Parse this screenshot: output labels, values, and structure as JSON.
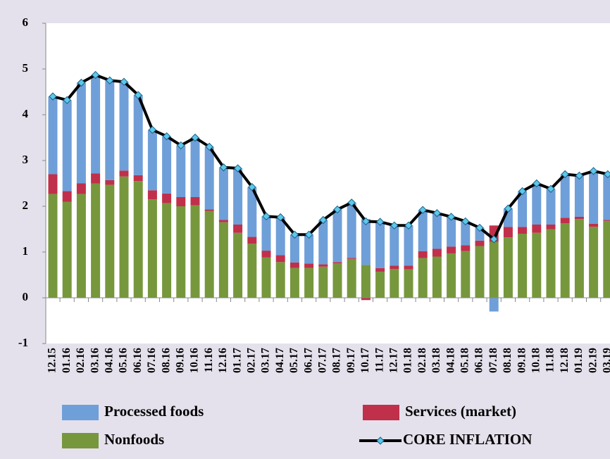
{
  "chart_data": {
    "type": "bar",
    "stacked": true,
    "categories": [
      "12.15",
      "01.16",
      "02.16",
      "03.16",
      "04.16",
      "05.16",
      "06.16",
      "07.16",
      "08.16",
      "09.16",
      "10.16",
      "11.16",
      "12.16",
      "01.17",
      "02.17",
      "03.17",
      "04.17",
      "05.17",
      "06.17",
      "07.17",
      "08.17",
      "09.17",
      "10.17",
      "11.17",
      "12.17",
      "01.18",
      "02.18",
      "03.18",
      "04.18",
      "05.18",
      "06.18",
      "07.18",
      "08.18",
      "09.18",
      "10.18",
      "11.18",
      "12.18",
      "01.19",
      "02.19",
      "03.19"
    ],
    "series": [
      {
        "name": "Nonfoods",
        "color": "#77973d",
        "values": [
          2.27,
          2.1,
          2.27,
          2.5,
          2.47,
          2.65,
          2.55,
          2.15,
          2.07,
          2.0,
          2.02,
          1.9,
          1.65,
          1.42,
          1.18,
          0.88,
          0.78,
          0.65,
          0.65,
          0.68,
          0.75,
          0.85,
          0.72,
          0.57,
          0.63,
          0.62,
          0.87,
          0.9,
          0.97,
          1.02,
          1.13,
          1.22,
          1.32,
          1.4,
          1.42,
          1.5,
          1.63,
          1.72,
          1.55,
          1.68
        ]
      },
      {
        "name": "Services (market)",
        "color": "#c0304a",
        "values": [
          0.43,
          0.23,
          0.23,
          0.22,
          0.1,
          0.13,
          0.13,
          0.2,
          0.21,
          0.2,
          0.18,
          0.03,
          0.05,
          0.18,
          0.15,
          0.15,
          0.15,
          0.12,
          0.1,
          0.05,
          0.03,
          0.02,
          -0.05,
          0.08,
          0.07,
          0.08,
          0.15,
          0.17,
          0.15,
          0.13,
          0.12,
          0.36,
          0.23,
          0.15,
          0.18,
          0.1,
          0.12,
          0.05,
          0.07,
          0.02
        ]
      },
      {
        "name": "Processed foods",
        "color": "#6f9fd8",
        "values": [
          1.7,
          1.99,
          2.2,
          2.15,
          2.18,
          1.94,
          1.75,
          1.32,
          1.25,
          1.13,
          1.3,
          1.37,
          1.15,
          1.23,
          1.09,
          0.75,
          0.83,
          0.61,
          0.63,
          0.97,
          1.15,
          1.21,
          1.0,
          1.01,
          0.88,
          0.88,
          0.9,
          0.78,
          0.65,
          0.52,
          0.28,
          -0.3,
          0.4,
          0.78,
          0.9,
          0.78,
          0.95,
          0.9,
          1.15,
          1.0
        ]
      },
      {
        "name": "CORE INFLATION",
        "type": "line",
        "color": "#000000",
        "marker_color": "#5cc8ea",
        "values": [
          4.4,
          4.32,
          4.7,
          4.87,
          4.75,
          4.72,
          4.43,
          3.67,
          3.53,
          3.33,
          3.5,
          3.3,
          2.85,
          2.83,
          2.42,
          1.78,
          1.76,
          1.38,
          1.38,
          1.7,
          1.93,
          2.08,
          1.67,
          1.66,
          1.58,
          1.58,
          1.92,
          1.85,
          1.77,
          1.67,
          1.53,
          1.28,
          1.95,
          2.33,
          2.5,
          2.38,
          2.7,
          2.67,
          2.77,
          2.7
        ]
      }
    ],
    "ylim": [
      -1,
      6
    ],
    "yticks": [
      -1,
      0,
      1,
      2,
      3,
      4,
      5,
      6
    ],
    "grid": false,
    "legend": "bottom"
  }
}
